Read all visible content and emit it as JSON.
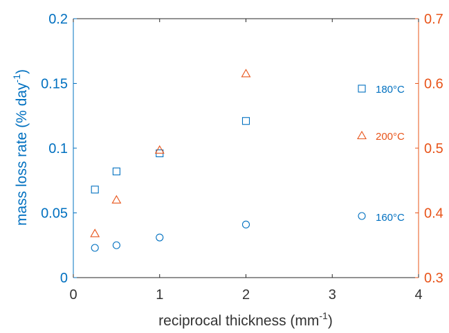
{
  "chart_data": {
    "type": "scatter",
    "title": "",
    "xlabel": "reciprocal thickness (mm",
    "xlabel_sup": "-1",
    "xlabel_suffix": ")",
    "ylabel": "mass loss rate (% day",
    "ylabel_sup": "-1",
    "ylabel_suffix": ")",
    "xlim": [
      0,
      4
    ],
    "ylim_left": [
      0,
      0.2
    ],
    "ylim_right": [
      0.3,
      0.7
    ],
    "x_ticks": [
      "0",
      "1",
      "2",
      "3",
      "4"
    ],
    "y_left_ticks": [
      "0",
      "0.05",
      "0.1",
      "0.15",
      "0.2"
    ],
    "y_right_ticks": [
      "0.3",
      "0.4",
      "0.5",
      "0.6",
      "0.7"
    ],
    "grid": false,
    "legend_placement": "right, labels beside each series",
    "colors": {
      "left_axis": "#0070c0",
      "right_axis": "#e8541a",
      "x_axis": "#333333"
    },
    "series": [
      {
        "name": "180°C",
        "axis": "left",
        "marker": "square",
        "color": "#0070c0",
        "x": [
          0.25,
          0.5,
          1,
          2
        ],
        "y": [
          0.068,
          0.082,
          0.096,
          0.121
        ]
      },
      {
        "name": "160°C",
        "axis": "left",
        "marker": "circle",
        "color": "#0070c0",
        "x": [
          0.25,
          0.5,
          1,
          2
        ],
        "y": [
          0.023,
          0.025,
          0.031,
          0.041
        ]
      },
      {
        "name": "200°C",
        "axis": "right",
        "marker": "triangle",
        "color": "#e8541a",
        "x": [
          0.25,
          0.5,
          1,
          2
        ],
        "y": [
          0.368,
          0.42,
          0.497,
          0.615
        ]
      }
    ]
  }
}
